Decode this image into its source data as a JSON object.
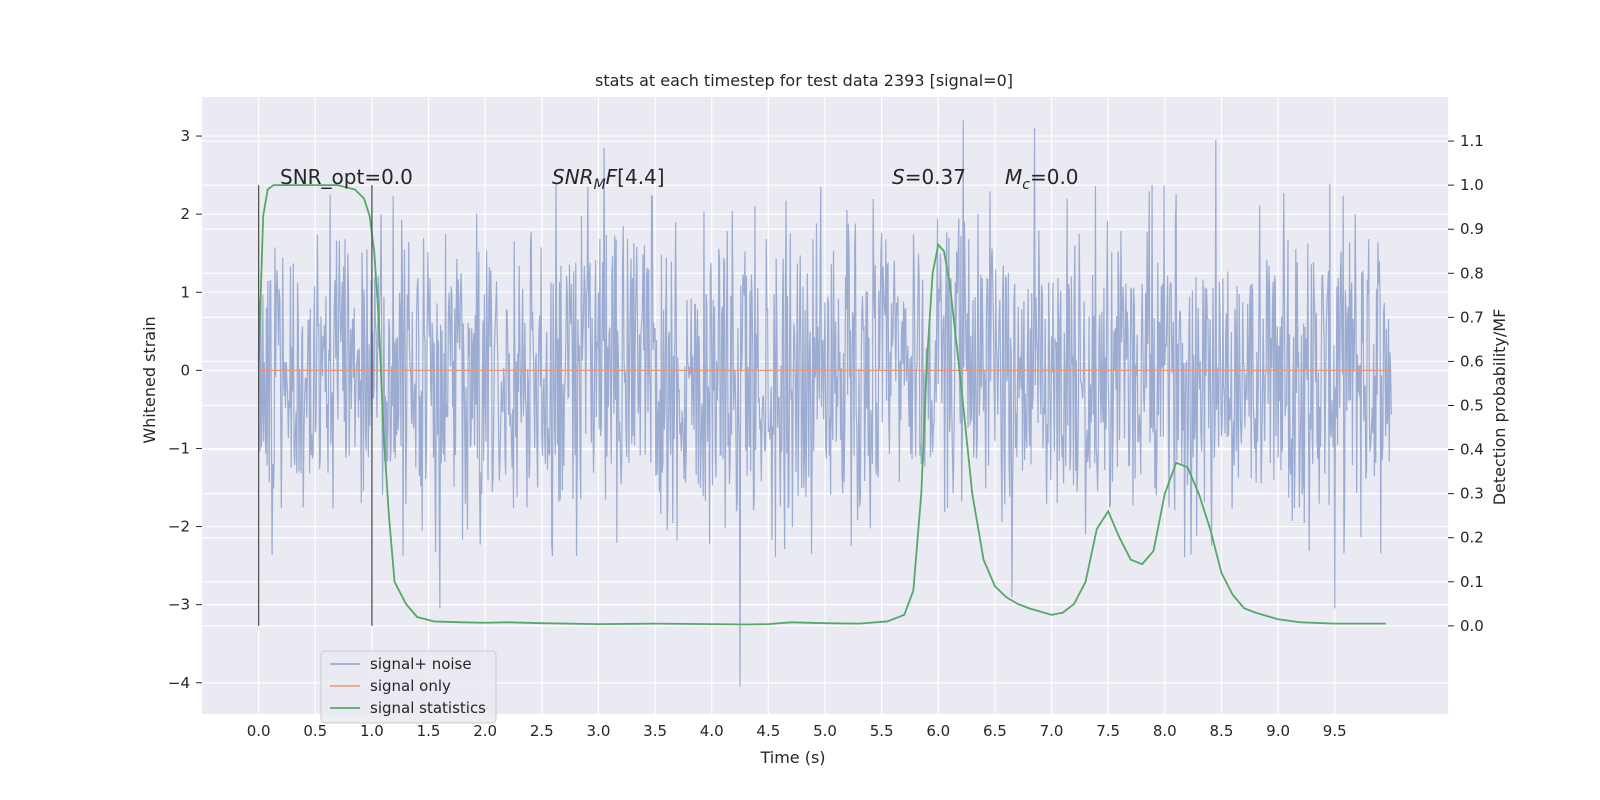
{
  "chart_data": {
    "type": "line",
    "title": "stats at each timestep for test data 2393 [signal=0]",
    "xlabel": "Time (s)",
    "ylabel": "Whitened strain",
    "y2label": "Detection probability/MF",
    "xlim": [
      -0.5,
      10.5
    ],
    "ylim": [
      -4.4,
      3.5
    ],
    "y2lim": [
      -0.2,
      1.2
    ],
    "grid": true,
    "x_ticks": [
      "0.0",
      "0.5",
      "1.0",
      "1.5",
      "2.0",
      "2.5",
      "3.0",
      "3.5",
      "4.0",
      "4.5",
      "5.0",
      "5.5",
      "6.0",
      "6.5",
      "7.0",
      "7.5",
      "8.0",
      "8.5",
      "9.0",
      "9.5"
    ],
    "y_ticks": [
      "−4",
      "−3",
      "−2",
      "−1",
      "0",
      "1",
      "2",
      "3"
    ],
    "y2_ticks": [
      "0.0",
      "0.1",
      "0.2",
      "0.3",
      "0.4",
      "0.5",
      "0.6",
      "0.7",
      "0.8",
      "0.9",
      "1.0",
      "1.1"
    ],
    "annotations": {
      "snr_opt": "SNR_opt=0.0",
      "snr_mf": "[4.4]",
      "s": "=0.37",
      "mc": "=0.0"
    },
    "legend": {
      "placement": "lower-left",
      "entries": [
        "signal+ noise",
        "signal only",
        "signal statistics"
      ]
    },
    "vertical_markers_x": [
      0.0,
      1.0
    ],
    "series": [
      {
        "name": "signal+ noise",
        "color": "#8da0cb",
        "kind": "noise",
        "x_range": [
          0.0,
          10.0
        ],
        "band_core": [
          -1.0,
          1.3
        ],
        "notable_peaks": [
          [
            3.05,
            2.85
          ],
          [
            6.22,
            3.2
          ],
          [
            6.85,
            3.1
          ],
          [
            8.45,
            2.95
          ],
          [
            4.25,
            -4.05
          ],
          [
            1.6,
            -3.05
          ],
          [
            9.5,
            -3.05
          ],
          [
            6.65,
            -2.9
          ]
        ]
      },
      {
        "name": "signal only",
        "color": "#e9967a",
        "kind": "flat",
        "x": [
          0.0,
          10.0
        ],
        "y": [
          0.0,
          0.0
        ]
      },
      {
        "name": "signal statistics",
        "color": "#55a868",
        "axis": "right",
        "x": [
          0.0,
          0.04,
          0.08,
          0.13,
          0.2,
          0.3,
          0.5,
          0.7,
          0.85,
          0.93,
          0.98,
          1.02,
          1.06,
          1.1,
          1.15,
          1.2,
          1.3,
          1.4,
          1.55,
          1.8,
          2.0,
          2.2,
          2.5,
          3.0,
          3.5,
          4.0,
          4.3,
          4.5,
          4.7,
          5.0,
          5.3,
          5.55,
          5.7,
          5.78,
          5.85,
          5.9,
          5.95,
          6.0,
          6.05,
          6.1,
          6.2,
          6.3,
          6.4,
          6.5,
          6.6,
          6.7,
          6.8,
          7.0,
          7.1,
          7.2,
          7.3,
          7.4,
          7.5,
          7.6,
          7.7,
          7.8,
          7.9,
          8.0,
          8.1,
          8.2,
          8.3,
          8.4,
          8.5,
          8.6,
          8.7,
          8.8,
          9.0,
          9.2,
          9.5,
          9.95
        ],
        "y": [
          0.6,
          0.93,
          0.99,
          1.0,
          1.0,
          1.0,
          1.0,
          1.0,
          0.99,
          0.97,
          0.93,
          0.85,
          0.7,
          0.45,
          0.25,
          0.1,
          0.05,
          0.02,
          0.01,
          0.008,
          0.007,
          0.008,
          0.006,
          0.004,
          0.005,
          0.004,
          0.003,
          0.004,
          0.008,
          0.006,
          0.005,
          0.01,
          0.025,
          0.08,
          0.3,
          0.6,
          0.8,
          0.865,
          0.85,
          0.78,
          0.55,
          0.3,
          0.15,
          0.09,
          0.065,
          0.05,
          0.04,
          0.025,
          0.03,
          0.05,
          0.1,
          0.22,
          0.26,
          0.2,
          0.15,
          0.14,
          0.17,
          0.3,
          0.37,
          0.36,
          0.3,
          0.22,
          0.12,
          0.07,
          0.04,
          0.03,
          0.015,
          0.008,
          0.005,
          0.005
        ]
      }
    ]
  }
}
